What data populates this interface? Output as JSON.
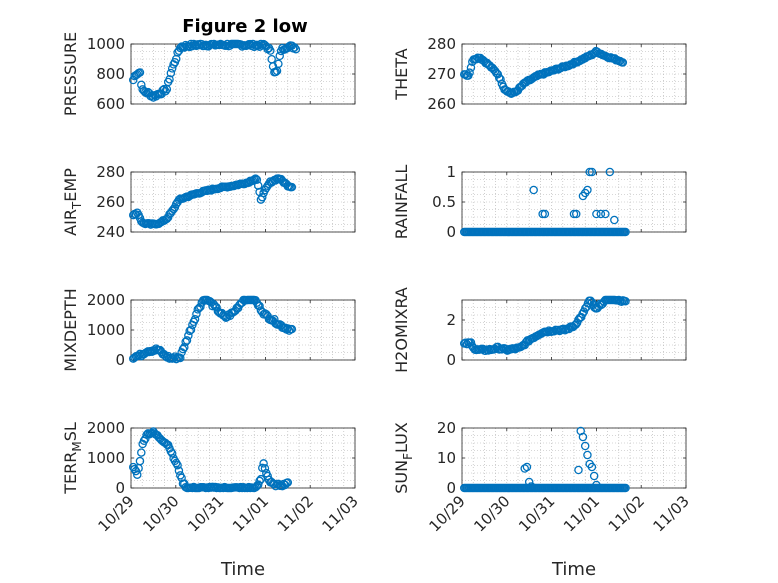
{
  "figure": {
    "title": "Figure 2 low"
  },
  "colors": {
    "marker": "#0072BD",
    "axis": "#262626",
    "grid": "#b0b0b0"
  },
  "chart_data": [
    {
      "type": "scatter",
      "id": "pressure",
      "title": "Figure 2 low",
      "ylabel": "PRESSURE",
      "ylabel_sub": "",
      "ylabel_tail": "",
      "xlabel": "",
      "xlim": [
        29,
        34
      ],
      "ylim": [
        600,
        1000
      ],
      "yticks": [
        600,
        800,
        1000
      ],
      "xticks": [],
      "grid": true,
      "noise": 12,
      "segments": [
        [
          29.05,
          760
        ],
        [
          29.1,
          800
        ],
        [
          29.2,
          810
        ],
        [
          29.25,
          690
        ],
        [
          29.4,
          670
        ],
        [
          29.5,
          650
        ],
        [
          29.7,
          680
        ],
        [
          29.8,
          700
        ],
        [
          29.9,
          820
        ],
        [
          30.0,
          900
        ],
        [
          30.1,
          980
        ],
        [
          30.3,
          990
        ],
        [
          30.5,
          995
        ],
        [
          31.0,
          995
        ],
        [
          31.5,
          995
        ],
        [
          32.0,
          990
        ],
        [
          32.1,
          960
        ],
        [
          32.2,
          820
        ],
        [
          32.25,
          800
        ],
        [
          32.35,
          960
        ],
        [
          32.5,
          985
        ],
        [
          32.6,
          980
        ],
        [
          32.7,
          975
        ]
      ]
    },
    {
      "type": "scatter",
      "id": "theta",
      "title": "",
      "ylabel": "THETA",
      "ylabel_sub": "",
      "ylabel_tail": "",
      "xlabel": "",
      "xlim": [
        29,
        34
      ],
      "ylim": [
        260,
        280
      ],
      "yticks": [
        260,
        270,
        280
      ],
      "xticks": [],
      "grid": true,
      "noise": 0.3,
      "segments": [
        [
          29.05,
          270
        ],
        [
          29.15,
          269.5
        ],
        [
          29.25,
          275
        ],
        [
          29.4,
          275.5
        ],
        [
          29.6,
          273
        ],
        [
          29.8,
          270
        ],
        [
          29.95,
          265
        ],
        [
          30.1,
          263.5
        ],
        [
          30.2,
          264
        ],
        [
          30.4,
          267
        ],
        [
          30.7,
          269.5
        ],
        [
          31.0,
          271
        ],
        [
          31.4,
          273
        ],
        [
          31.7,
          275
        ],
        [
          31.9,
          276.5
        ],
        [
          32.0,
          277.5
        ],
        [
          32.2,
          276
        ],
        [
          32.4,
          275
        ],
        [
          32.6,
          274
        ]
      ]
    },
    {
      "type": "scatter",
      "id": "airtemp",
      "title": "",
      "ylabel": "AIR",
      "ylabel_sub": "T",
      "ylabel_tail": "EMP",
      "xlabel": "",
      "xlim": [
        29,
        34
      ],
      "ylim": [
        240,
        280
      ],
      "yticks": [
        240,
        260,
        280
      ],
      "xticks": [],
      "grid": true,
      "noise": 0.6,
      "segments": [
        [
          29.05,
          251
        ],
        [
          29.15,
          253
        ],
        [
          29.25,
          246
        ],
        [
          29.45,
          245
        ],
        [
          29.65,
          246
        ],
        [
          29.8,
          249
        ],
        [
          29.95,
          255
        ],
        [
          30.05,
          261
        ],
        [
          30.2,
          263
        ],
        [
          30.5,
          266
        ],
        [
          30.9,
          269
        ],
        [
          31.3,
          271
        ],
        [
          31.6,
          273
        ],
        [
          31.8,
          276
        ],
        [
          31.9,
          262
        ],
        [
          32.0,
          268
        ],
        [
          32.1,
          273
        ],
        [
          32.3,
          276
        ],
        [
          32.5,
          271
        ],
        [
          32.6,
          270
        ]
      ]
    },
    {
      "type": "scatter",
      "id": "rainfall",
      "title": "",
      "ylabel": "RAINFALL",
      "ylabel_sub": "",
      "ylabel_tail": "",
      "xlabel": "",
      "xlim": [
        29,
        34
      ],
      "ylim": [
        0,
        1
      ],
      "yticks": [
        0,
        0.5,
        1
      ],
      "xticks": [],
      "grid": true,
      "noise": 0,
      "baseline": 0,
      "baseline_range": [
        29.05,
        32.65
      ],
      "spikes": [
        [
          30.6,
          0.7
        ],
        [
          30.8,
          0.3
        ],
        [
          30.85,
          0.3
        ],
        [
          31.5,
          0.3
        ],
        [
          31.55,
          0.3
        ],
        [
          31.7,
          0.6
        ],
        [
          31.75,
          0.65
        ],
        [
          31.8,
          0.7
        ],
        [
          31.85,
          1.0
        ],
        [
          31.9,
          1.0
        ],
        [
          32.0,
          0.3
        ],
        [
          32.1,
          0.3
        ],
        [
          32.2,
          0.3
        ],
        [
          32.3,
          1.0
        ],
        [
          32.4,
          0.2
        ]
      ]
    },
    {
      "type": "scatter",
      "id": "mixdepth",
      "title": "",
      "ylabel": "MIXDEPTH",
      "ylabel_sub": "",
      "ylabel_tail": "",
      "xlabel": "",
      "xlim": [
        29,
        34
      ],
      "ylim": [
        0,
        2000
      ],
      "yticks": [
        0,
        1000,
        2000
      ],
      "xticks": [],
      "grid": true,
      "noise": 60,
      "segments": [
        [
          29.05,
          100
        ],
        [
          29.2,
          150
        ],
        [
          29.35,
          300
        ],
        [
          29.6,
          350
        ],
        [
          29.75,
          150
        ],
        [
          29.9,
          50
        ],
        [
          30.1,
          100
        ],
        [
          30.3,
          900
        ],
        [
          30.5,
          1700
        ],
        [
          30.65,
          2100
        ],
        [
          30.85,
          1800
        ],
        [
          31.1,
          1400
        ],
        [
          31.3,
          1600
        ],
        [
          31.5,
          2000
        ],
        [
          31.7,
          2150
        ],
        [
          31.85,
          1800
        ],
        [
          32.0,
          1500
        ],
        [
          32.2,
          1300
        ],
        [
          32.4,
          1100
        ],
        [
          32.6,
          1000
        ]
      ]
    },
    {
      "type": "scatter",
      "id": "h2omixra",
      "title": "",
      "ylabel": "H2OMIXRA",
      "ylabel_sub": "",
      "ylabel_tail": "",
      "xlabel": "",
      "xlim": [
        29,
        34
      ],
      "ylim": [
        0,
        3
      ],
      "yticks": [
        0,
        2
      ],
      "xticks": [],
      "grid": true,
      "noise": 0.06,
      "segments": [
        [
          29.05,
          0.8
        ],
        [
          29.2,
          0.85
        ],
        [
          29.3,
          0.5
        ],
        [
          29.6,
          0.5
        ],
        [
          29.8,
          0.6
        ],
        [
          30.0,
          0.5
        ],
        [
          30.3,
          0.6
        ],
        [
          30.5,
          1.0
        ],
        [
          30.8,
          1.4
        ],
        [
          31.1,
          1.5
        ],
        [
          31.3,
          1.5
        ],
        [
          31.5,
          1.7
        ],
        [
          31.7,
          2.3
        ],
        [
          31.85,
          3.0
        ],
        [
          32.0,
          2.5
        ],
        [
          32.1,
          2.8
        ],
        [
          32.3,
          3.1
        ],
        [
          32.5,
          3.0
        ],
        [
          32.65,
          2.9
        ]
      ]
    },
    {
      "type": "scatter",
      "id": "terrmsl",
      "title": "",
      "ylabel": "TERR",
      "ylabel_sub": "M",
      "ylabel_tail": "SL",
      "xlabel": "Time",
      "xlim": [
        29,
        34
      ],
      "ylim": [
        0,
        2000
      ],
      "yticks": [
        0,
        1000,
        2000
      ],
      "xticks": [
        "10/29",
        "10/30",
        "10/31",
        "11/01",
        "11/02",
        "11/03"
      ],
      "grid": true,
      "noise": 40,
      "segments": [
        [
          29.05,
          700
        ],
        [
          29.15,
          450
        ],
        [
          29.25,
          1400
        ],
        [
          29.35,
          1800
        ],
        [
          29.5,
          1850
        ],
        [
          29.7,
          1600
        ],
        [
          29.85,
          1400
        ],
        [
          29.95,
          1000
        ],
        [
          30.05,
          700
        ],
        [
          30.15,
          200
        ],
        [
          30.25,
          0
        ],
        [
          31.0,
          0
        ],
        [
          31.8,
          0
        ],
        [
          31.9,
          300
        ],
        [
          31.95,
          900
        ],
        [
          32.0,
          600
        ],
        [
          32.1,
          200
        ],
        [
          32.2,
          100
        ],
        [
          32.4,
          100
        ],
        [
          32.5,
          200
        ]
      ]
    },
    {
      "type": "scatter",
      "id": "sunflux",
      "title": "",
      "ylabel": "SUN",
      "ylabel_sub": "F",
      "ylabel_tail": "LUX",
      "xlabel": "Time",
      "xlim": [
        29,
        34
      ],
      "ylim": [
        0,
        20
      ],
      "yticks": [
        0,
        10,
        20
      ],
      "xticks": [
        "10/29",
        "10/30",
        "10/31",
        "11/01",
        "11/02",
        "11/03"
      ],
      "grid": true,
      "noise": 0,
      "baseline": 0,
      "baseline_range": [
        29.05,
        32.65
      ],
      "spikes": [
        [
          30.4,
          6.5
        ],
        [
          30.45,
          7
        ],
        [
          30.5,
          2
        ],
        [
          30.55,
          0.5
        ],
        [
          31.6,
          6
        ],
        [
          31.65,
          19
        ],
        [
          31.7,
          17
        ],
        [
          31.75,
          14
        ],
        [
          31.8,
          11
        ],
        [
          31.85,
          8
        ],
        [
          31.9,
          7
        ],
        [
          31.95,
          4
        ],
        [
          32.0,
          1
        ]
      ]
    }
  ]
}
